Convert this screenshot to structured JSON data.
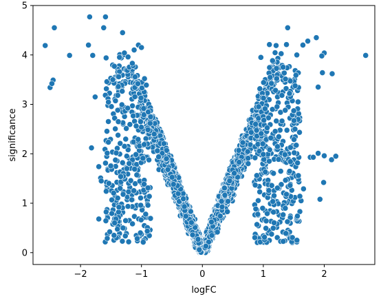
{
  "chart_data": {
    "type": "scatter",
    "title": "",
    "xlabel": "logFC",
    "ylabel": "significance",
    "xlim": [
      -2.78,
      2.83
    ],
    "ylim": [
      -0.24,
      5.0
    ],
    "xticks": [
      -2,
      -1,
      0,
      1,
      2
    ],
    "yticks": [
      0,
      1,
      2,
      3,
      4,
      5
    ],
    "xtick_labels": [
      "−2",
      "−1",
      "0",
      "1",
      "2"
    ],
    "ytick_labels": [
      "0",
      "1",
      "2",
      "3",
      "4",
      "5"
    ],
    "grid": false,
    "legend": "none",
    "marker_color": "#1f77b4",
    "marker_edge_color": "#ffffff",
    "dense_points_note": "Thousands of points form a V-shaped cloud: significance ≈ 3.1 × |logFC| near zero, spreading up to ~4.8.",
    "points": [
      [
        -2.58,
        4.19
      ],
      [
        -2.43,
        4.55
      ],
      [
        -2.5,
        3.34
      ],
      [
        -2.45,
        3.49
      ],
      [
        -2.47,
        3.42
      ],
      [
        -2.18,
        3.99
      ],
      [
        -1.85,
        4.77
      ],
      [
        -1.59,
        4.77
      ],
      [
        -1.62,
        4.55
      ],
      [
        -1.87,
        4.2
      ],
      [
        -1.8,
        3.99
      ],
      [
        -1.31,
        4.45
      ],
      [
        -1.58,
        3.94
      ],
      [
        -1.76,
        3.15
      ],
      [
        -1.82,
        2.12
      ],
      [
        -1.7,
        1.74
      ],
      [
        -1.67,
        1.51
      ],
      [
        -1.66,
        1.45
      ],
      [
        -1.7,
        0.68
      ],
      [
        -1.45,
        0.35
      ],
      [
        -1.38,
        3.36
      ],
      [
        -1.45,
        3.43
      ],
      [
        -1.47,
        3.5
      ],
      [
        -1.44,
        2.72
      ],
      [
        -1.38,
        2.65
      ],
      [
        -1.35,
        2.21
      ],
      [
        -1.31,
        1.82
      ],
      [
        -1.37,
        0.92
      ],
      [
        -1.42,
        0.68
      ],
      [
        -1.44,
        0.6
      ],
      [
        -1.35,
        1.3
      ],
      [
        -1.28,
        4.04
      ],
      [
        -1.22,
        3.96
      ],
      [
        -1.12,
        4.1
      ],
      [
        -1.05,
        4.2
      ],
      [
        -1.0,
        4.15
      ],
      [
        -1.15,
        3.83
      ],
      [
        -0.92,
        3.39
      ],
      [
        -0.95,
        3.52
      ],
      [
        0.96,
        3.95
      ],
      [
        1.1,
        4.21
      ],
      [
        1.21,
        4.19
      ],
      [
        1.4,
        4.55
      ],
      [
        1.38,
        4.21
      ],
      [
        1.55,
        4.0
      ],
      [
        1.65,
        4.2
      ],
      [
        1.73,
        4.28
      ],
      [
        1.87,
        4.35
      ],
      [
        2.0,
        4.04
      ],
      [
        1.96,
        3.98
      ],
      [
        1.9,
        3.35
      ],
      [
        2.13,
        3.62
      ],
      [
        1.97,
        3.64
      ],
      [
        2.68,
        3.99
      ],
      [
        1.9,
        2.01
      ],
      [
        2.0,
        1.96
      ],
      [
        2.12,
        1.88
      ],
      [
        2.19,
        1.95
      ],
      [
        1.99,
        1.42
      ],
      [
        1.93,
        1.08
      ],
      [
        1.77,
        1.93
      ],
      [
        1.82,
        1.93
      ],
      [
        1.66,
        1.29
      ],
      [
        1.62,
        1.05
      ],
      [
        1.6,
        0.83
      ],
      [
        1.55,
        0.72
      ],
      [
        1.37,
        0.39
      ],
      [
        1.56,
        0.74
      ],
      [
        1.6,
        1.14
      ],
      [
        1.5,
        2.87
      ],
      [
        1.57,
        3.05
      ],
      [
        1.43,
        3.22
      ]
    ],
    "v_cloud": {
      "slope": 3.1,
      "left_arm_ymax": 4.25,
      "right_arm_ymax": 4.25,
      "core_halfwidth_logfc": 0.32
    }
  }
}
